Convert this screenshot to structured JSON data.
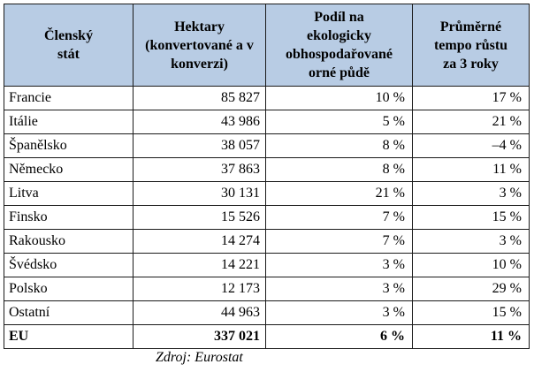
{
  "table": {
    "headers": [
      [
        "Členský",
        "stát"
      ],
      [
        "Hektary",
        "(konvertované  a v",
        "konverzi)"
      ],
      [
        "Podíl na",
        "ekologicky",
        "obhospodařované",
        "orné půdě"
      ],
      [
        "Průměrné",
        "tempo růstu",
        "za 3 roky"
      ]
    ],
    "rows": [
      {
        "country": "Francie",
        "hectares": "85 827",
        "share": "10 %",
        "growth": "17 %"
      },
      {
        "country": "Itálie",
        "hectares": "43 986",
        "share": "5 %",
        "growth": "21 %"
      },
      {
        "country": "Španělsko",
        "hectares": "38 057",
        "share": "8 %",
        "growth": "–4 %"
      },
      {
        "country": "Německo",
        "hectares": "37 863",
        "share": "8 %",
        "growth": "11 %"
      },
      {
        "country": "Litva",
        "hectares": "30 131",
        "share": "21 %",
        "growth": "3 %"
      },
      {
        "country": "Finsko",
        "hectares": "15 526",
        "share": "7 %",
        "growth": "15 %"
      },
      {
        "country": "Rakousko",
        "hectares": "14 274",
        "share": "7 %",
        "growth": "3 %"
      },
      {
        "country": "Švédsko",
        "hectares": "14 221",
        "share": "3 %",
        "growth": "10 %"
      },
      {
        "country": "Polsko",
        "hectares": "12 173",
        "share": "3 %",
        "growth": "29 %"
      },
      {
        "country": "Ostatní",
        "hectares": "44 963",
        "share": "3 %",
        "growth": "15 %"
      }
    ],
    "total": {
      "country": "EU",
      "hectares": "337 021",
      "share": "6 %",
      "growth": "11 %"
    },
    "header_color": "#b8cce4"
  },
  "source": "Zdroj: Eurostat"
}
